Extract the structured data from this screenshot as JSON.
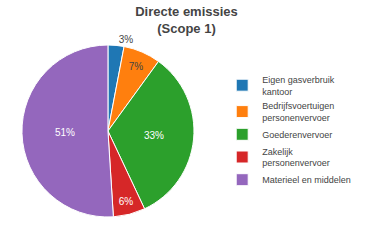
{
  "chart_data": {
    "type": "pie",
    "title": "Directe emissies\n(Scope 1)",
    "categories": [
      "Eigen gasverbruik\nkantoor",
      "Bedrijfsvoertuigen\npersonenvervoer",
      "Goederenvervoer",
      "Zakelijk\npersonenvervoer",
      "Materieel en middelen"
    ],
    "values": [
      3,
      7,
      33,
      6,
      51
    ],
    "value_labels": [
      "3%",
      "7%",
      "33%",
      "6%",
      "51%"
    ],
    "data_labels": true,
    "legend": "right"
  }
}
